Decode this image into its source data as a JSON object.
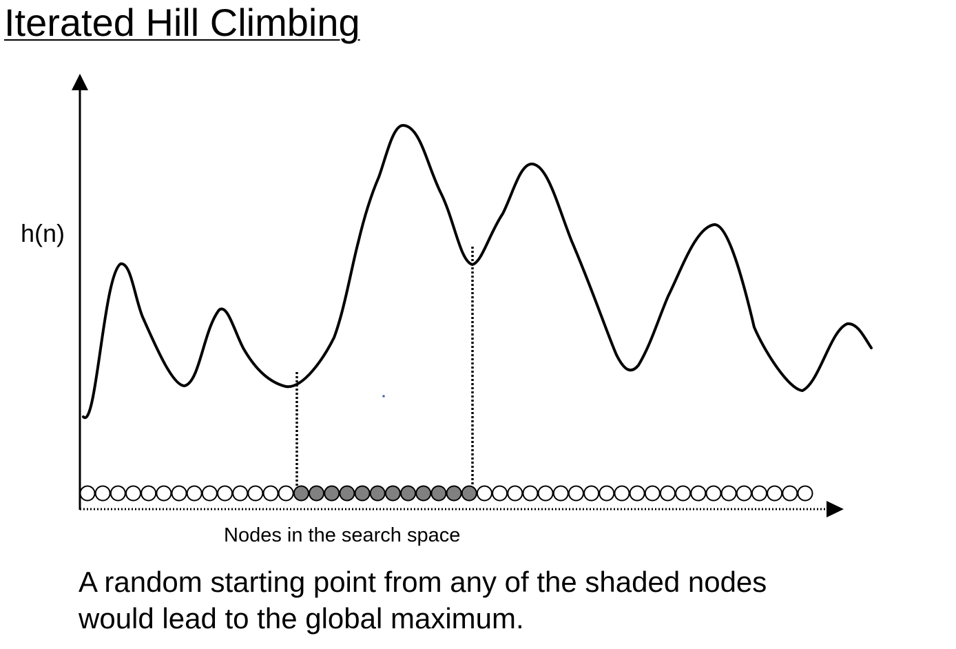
{
  "title": "Iterated Hill Climbing",
  "diagram": {
    "y_axis_label": "h(n)",
    "x_axis_label": "Nodes in the search space",
    "node_count": 48,
    "shaded_range": [
      14,
      25
    ],
    "node_fill_shaded": "#808080",
    "node_fill_unshaded": "#ffffff",
    "line_color": "#000000"
  },
  "caption": {
    "line1": "A random starting point from any of the shaded nodes",
    "line2": "would lead to the global maximum."
  }
}
